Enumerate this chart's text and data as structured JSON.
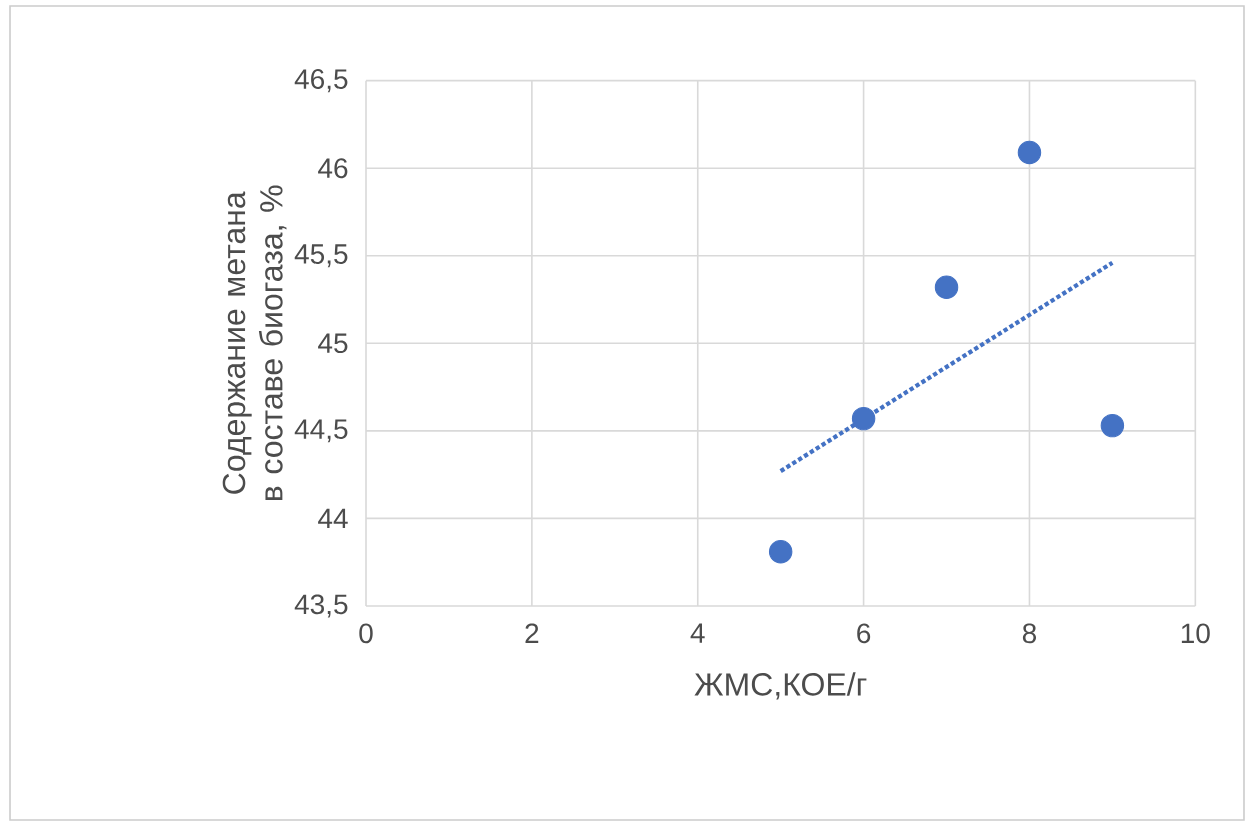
{
  "chart_data": {
    "type": "scatter",
    "xlabel": "ЖМС,КОЕ/г",
    "ylabel": "Содержание метана в составе биогаза, %",
    "xlim": [
      0,
      10
    ],
    "xticks": [
      0,
      2,
      4,
      6,
      8,
      10
    ],
    "ylim": [
      43.5,
      46.5
    ],
    "yticks": [
      {
        "value": 43.5,
        "label": "43,5"
      },
      {
        "value": 44,
        "label": "44"
      },
      {
        "value": 44.5,
        "label": "44,5"
      },
      {
        "value": 45,
        "label": "45"
      },
      {
        "value": 45.5,
        "label": "45,5"
      },
      {
        "value": 46,
        "label": "46"
      },
      {
        "value": 46.5,
        "label": "46,5"
      }
    ],
    "grid": true,
    "series": [
      {
        "color": "#4472c4",
        "marker": "circle",
        "x": [
          5,
          6,
          7,
          8,
          9
        ],
        "values": [
          43.81,
          44.57,
          45.32,
          46.09,
          44.53
        ]
      },
      {
        "type": "line",
        "color": "#4472c4",
        "line_style": "dotted",
        "marker": "none",
        "x": [
          5,
          9
        ],
        "values": [
          44.27,
          45.46
        ]
      }
    ]
  }
}
